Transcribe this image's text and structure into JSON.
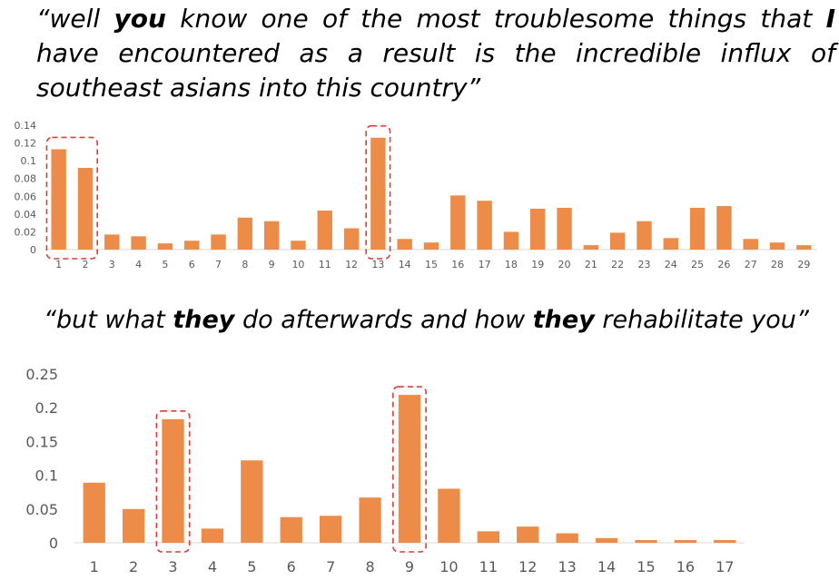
{
  "quotes": [
    {
      "segments": [
        {
          "text": "“well ",
          "bold": false
        },
        {
          "text": "you",
          "bold": true
        },
        {
          "text": " know one of the most troublesome things that ",
          "bold": false
        },
        {
          "text": "I",
          "bold": true
        },
        {
          "text": " have encountered as a result is the incredible influx of southeast asians into this country”",
          "bold": false
        }
      ]
    },
    {
      "segments": [
        {
          "text": "“but what ",
          "bold": false
        },
        {
          "text": "they",
          "bold": true
        },
        {
          "text": " do afterwards and how ",
          "bold": false
        },
        {
          "text": "they",
          "bold": true
        },
        {
          "text": " rehabilitate you”",
          "bold": false
        }
      ]
    }
  ],
  "colors": {
    "bar": "#ED8B48",
    "highlight": "#E23B3B",
    "axis": "#D9D9D9",
    "tick_text": "#595959"
  },
  "chart_data": [
    {
      "type": "bar",
      "categories": [
        "1",
        "2",
        "3",
        "4",
        "5",
        "6",
        "7",
        "8",
        "9",
        "10",
        "11",
        "12",
        "13",
        "14",
        "15",
        "16",
        "17",
        "18",
        "19",
        "20",
        "21",
        "22",
        "23",
        "24",
        "25",
        "26",
        "27",
        "28",
        "29"
      ],
      "values": [
        0.113,
        0.092,
        0.017,
        0.015,
        0.007,
        0.01,
        0.017,
        0.036,
        0.032,
        0.01,
        0.044,
        0.024,
        0.126,
        0.012,
        0.008,
        0.061,
        0.055,
        0.02,
        0.046,
        0.047,
        0.005,
        0.019,
        0.032,
        0.013,
        0.047,
        0.049,
        0.012,
        0.008,
        0.005
      ],
      "ylim": [
        0,
        0.14
      ],
      "yticks": [
        0,
        0.02,
        0.04,
        0.06,
        0.08,
        0.1,
        0.12,
        0.14
      ],
      "ytick_labels": [
        "0",
        "0.02",
        "0.04",
        "0.06",
        "0.08",
        "0.1",
        "0.12",
        "0.14"
      ],
      "highlight_groups": [
        [
          "1",
          "2"
        ],
        [
          "13"
        ]
      ],
      "title": "",
      "xlabel": "",
      "ylabel": "",
      "grid": false,
      "legend": "none"
    },
    {
      "type": "bar",
      "categories": [
        "1",
        "2",
        "3",
        "4",
        "5",
        "6",
        "7",
        "8",
        "9",
        "10",
        "11",
        "12",
        "13",
        "14",
        "15",
        "16",
        "17"
      ],
      "values": [
        0.089,
        0.05,
        0.183,
        0.021,
        0.122,
        0.038,
        0.04,
        0.067,
        0.219,
        0.08,
        0.017,
        0.024,
        0.014,
        0.007,
        0.004,
        0.004,
        0.004
      ],
      "ylim": [
        0,
        0.25
      ],
      "yticks": [
        0,
        0.05,
        0.1,
        0.15,
        0.2,
        0.25
      ],
      "ytick_labels": [
        "0",
        "0.05",
        "0.1",
        "0.15",
        "0.2",
        "0.25"
      ],
      "highlight_groups": [
        [
          "3"
        ],
        [
          "9"
        ]
      ],
      "title": "",
      "xlabel": "",
      "ylabel": "",
      "grid": false,
      "legend": "none"
    }
  ]
}
